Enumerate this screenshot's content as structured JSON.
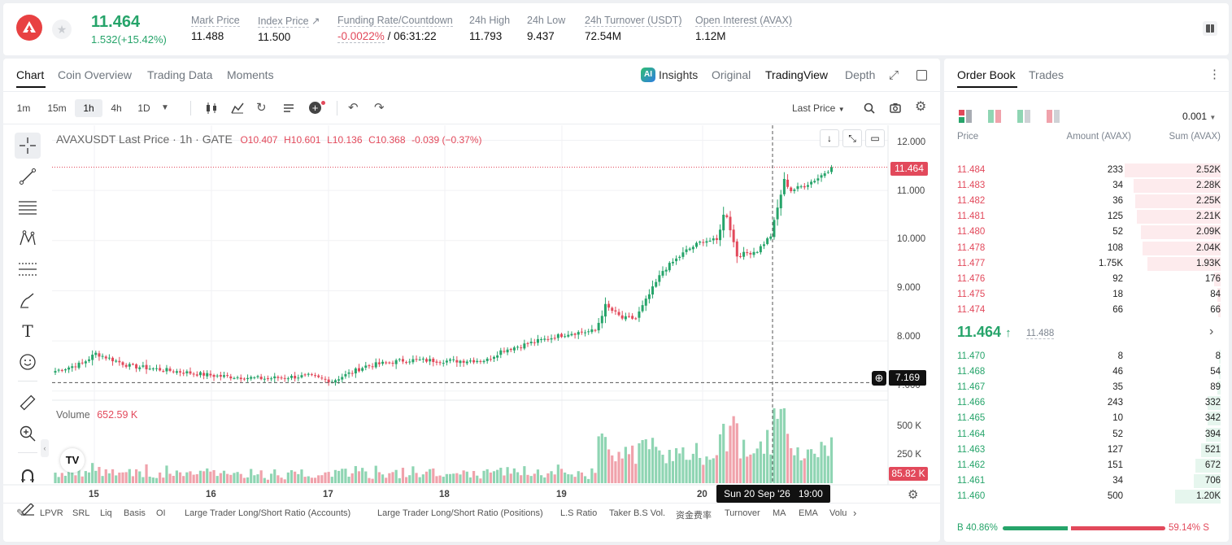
{
  "header": {
    "last_price": "11.464",
    "change": "1.532(+15.42%)",
    "stats": [
      {
        "label": "Mark Price",
        "value": "11.488"
      },
      {
        "label": "Index Price",
        "value": "11.500"
      },
      {
        "label": "Funding Rate/Countdown",
        "value_rate": "-0.0022%",
        "value_countdown": "/ 06:31:22"
      },
      {
        "label": "24h High",
        "value": "11.793"
      },
      {
        "label": "24h Low",
        "value": "9.437"
      },
      {
        "label": "24h Turnover (USDT)",
        "value": "72.54M"
      },
      {
        "label": "Open Interest (AVAX)",
        "value": "1.12M"
      }
    ]
  },
  "chart_tabs": [
    "Chart",
    "Coin Overview",
    "Trading Data",
    "Moments"
  ],
  "view_tabs": {
    "insights": "Insights",
    "original": "Original",
    "tradingview": "TradingView",
    "depth": "Depth"
  },
  "timeframes": [
    "1m",
    "15m",
    "1h",
    "4h",
    "1D"
  ],
  "price_type": "Last Price",
  "legend": {
    "symbol": "AVAXUSDT Last Price · 1h · GATE",
    "open": "O10.407",
    "high": "H10.601",
    "low": "L10.136",
    "close": "C10.368",
    "change": "-0.039 (−0.37%)"
  },
  "volume_legend": {
    "label": "Volume",
    "value": "652.59 K"
  },
  "colors": {
    "up": "#26a46a",
    "down": "#e2495b",
    "up_bar": "#8fd5b3",
    "down_bar": "#f0a2ab"
  },
  "chart_data": {
    "type": "candlestick",
    "y_ticks": [
      "12.000",
      "11.000",
      "10.000",
      "9.000",
      "8.000",
      "7.000"
    ],
    "ylim": [
      6.85,
      12.3
    ],
    "volume_ticks": [
      "500 K",
      "250 K"
    ],
    "x_ticks": [
      "15",
      "16",
      "17",
      "18",
      "19",
      "20"
    ],
    "current_price_label": "11.464",
    "crosshair_price_label": "7.169",
    "crosshair_time_label": "Sun 20 Sep '26   19:00",
    "current_volume_label": "85.82 K",
    "anchors": [
      [
        0,
        7.4
      ],
      [
        8,
        7.55
      ],
      [
        12,
        7.75
      ],
      [
        22,
        7.5
      ],
      [
        35,
        7.4
      ],
      [
        48,
        7.3
      ],
      [
        62,
        7.25
      ],
      [
        75,
        7.3
      ],
      [
        82,
        7.2
      ],
      [
        92,
        7.5
      ],
      [
        104,
        7.62
      ],
      [
        118,
        7.6
      ],
      [
        128,
        7.62
      ],
      [
        132,
        7.8
      ],
      [
        142,
        7.98
      ],
      [
        152,
        8.15
      ],
      [
        160,
        8.2
      ],
      [
        163,
        8.7
      ],
      [
        168,
        8.45
      ],
      [
        172,
        8.45
      ],
      [
        180,
        9.4
      ],
      [
        187,
        9.8
      ],
      [
        192,
        10.0
      ],
      [
        196,
        10.0
      ],
      [
        198,
        10.5
      ],
      [
        199,
        10.5
      ],
      [
        202,
        9.7
      ],
      [
        208,
        9.8
      ],
      [
        212,
        10.1
      ],
      [
        216,
        11.2
      ],
      [
        218,
        11.0
      ],
      [
        222,
        11.1
      ],
      [
        226,
        11.25
      ],
      [
        230,
        11.464
      ]
    ]
  },
  "bottom_indicators": [
    "LPVR",
    "SRL",
    "Liq",
    "Basis",
    "OI",
    "Large Trader Long/Short Ratio (Accounts)",
    "Large Trader Long/Short Ratio (Positions)",
    "L.S Ratio",
    "Taker B.S Vol.",
    "资金费率",
    "Turnover",
    "MA",
    "EMA",
    "Volu"
  ],
  "order_book": {
    "tabs": [
      "Order Book",
      "Trades"
    ],
    "precision": "0.001",
    "columns": [
      "Price",
      "Amount (AVAX)",
      "Sum (AVAX)"
    ],
    "asks": [
      {
        "price": "11.484",
        "amount": "233",
        "sum": "2.52K",
        "depth": 1.0
      },
      {
        "price": "11.483",
        "amount": "34",
        "sum": "2.28K",
        "depth": 0.905
      },
      {
        "price": "11.482",
        "amount": "36",
        "sum": "2.25K",
        "depth": 0.893
      },
      {
        "price": "11.481",
        "amount": "125",
        "sum": "2.21K",
        "depth": 0.877
      },
      {
        "price": "11.480",
        "amount": "52",
        "sum": "2.09K",
        "depth": 0.829
      },
      {
        "price": "11.478",
        "amount": "108",
        "sum": "2.04K",
        "depth": 0.81
      },
      {
        "price": "11.477",
        "amount": "1.75K",
        "sum": "1.93K",
        "depth": 0.766
      },
      {
        "price": "11.476",
        "amount": "92",
        "sum": "176",
        "depth": 0.07
      },
      {
        "price": "11.475",
        "amount": "18",
        "sum": "84",
        "depth": 0.033
      },
      {
        "price": "11.474",
        "amount": "66",
        "sum": "66",
        "depth": 0.026
      }
    ],
    "mid_price": "11.464",
    "mid_mark": "11.488",
    "bids": [
      {
        "price": "11.470",
        "amount": "8",
        "sum": "8",
        "depth": 0.003
      },
      {
        "price": "11.468",
        "amount": "46",
        "sum": "54",
        "depth": 0.021
      },
      {
        "price": "11.467",
        "amount": "35",
        "sum": "89",
        "depth": 0.035
      },
      {
        "price": "11.466",
        "amount": "243",
        "sum": "332",
        "depth": 0.132
      },
      {
        "price": "11.465",
        "amount": "10",
        "sum": "342",
        "depth": 0.136
      },
      {
        "price": "11.464",
        "amount": "52",
        "sum": "394",
        "depth": 0.156
      },
      {
        "price": "11.463",
        "amount": "127",
        "sum": "521",
        "depth": 0.207
      },
      {
        "price": "11.462",
        "amount": "151",
        "sum": "672",
        "depth": 0.267
      },
      {
        "price": "11.461",
        "amount": "34",
        "sum": "706",
        "depth": 0.28
      },
      {
        "price": "11.460",
        "amount": "500",
        "sum": "1.20K",
        "depth": 0.476
      }
    ],
    "buy_ratio": "B 40.86%",
    "sell_ratio": "59.14% S",
    "buy_fraction": 0.4086
  }
}
